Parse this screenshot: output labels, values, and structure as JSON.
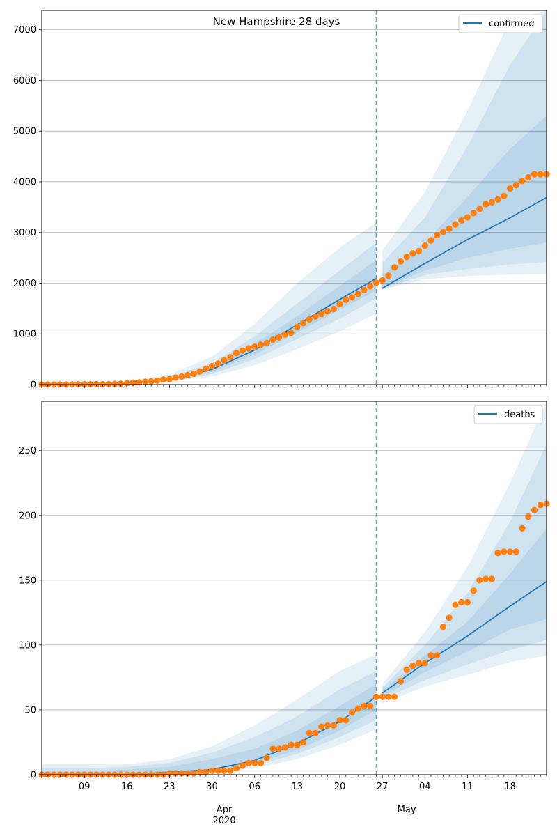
{
  "chart_data": [
    {
      "type": "line",
      "title": "New Hampshire 28 days",
      "xlabel": "",
      "ylabel": "",
      "ylim": [
        0,
        7380
      ],
      "yticks": [
        0,
        1000,
        2000,
        3000,
        4000,
        5000,
        6000,
        7000
      ],
      "grid": "horizontal",
      "legend_position": "top-right",
      "forecast_start": "2020-04-26",
      "series": [
        {
          "name": "confirmed",
          "kind": "forecast-median-line",
          "color": "#1f77b4",
          "x": [
            "2020-03-02",
            "2020-03-09",
            "2020-03-16",
            "2020-03-23",
            "2020-03-30",
            "2020-04-06",
            "2020-04-13",
            "2020-04-20",
            "2020-04-26",
            "2020-04-27",
            "2020-05-04",
            "2020-05-11",
            "2020-05-18",
            "2020-05-24"
          ],
          "y": [
            0,
            5,
            25,
            95,
            300,
            680,
            1180,
            1680,
            2090,
            1900,
            2390,
            2860,
            3290,
            3690
          ]
        },
        {
          "name": "uncertainty bands",
          "kind": "bands",
          "color": "#1f77b4",
          "x": [
            "2020-03-02",
            "2020-03-09",
            "2020-03-16",
            "2020-03-23",
            "2020-03-30",
            "2020-04-06",
            "2020-04-13",
            "2020-04-20",
            "2020-04-26",
            "2020-04-27",
            "2020-05-04",
            "2020-05-11",
            "2020-05-18",
            "2020-05-24"
          ],
          "outer_low": [
            0,
            0,
            10,
            50,
            160,
            380,
            700,
            1050,
            1400,
            1870,
            2080,
            2140,
            2170,
            2180
          ],
          "outer_high": [
            30,
            40,
            70,
            200,
            550,
            1200,
            2000,
            2700,
            3200,
            2650,
            3800,
            5400,
            7200,
            7380
          ],
          "mid_low": [
            0,
            0,
            15,
            65,
            210,
            500,
            900,
            1300,
            1700,
            1880,
            2160,
            2280,
            2370,
            2420
          ],
          "mid_high": [
            15,
            20,
            45,
            150,
            420,
            950,
            1600,
            2250,
            2800,
            2400,
            3300,
            4700,
            6300,
            7380
          ],
          "inner_low": [
            0,
            2,
            18,
            80,
            250,
            590,
            1030,
            1480,
            1850,
            1890,
            2250,
            2500,
            2680,
            2800
          ],
          "inner_high": [
            5,
            10,
            35,
            120,
            360,
            800,
            1350,
            1950,
            2450,
            2150,
            2800,
            3700,
            4650,
            5300
          ]
        },
        {
          "name": "observed",
          "kind": "scatter",
          "color": "#ff7f0e",
          "x": [
            "2020-03-02",
            "2020-03-03",
            "2020-03-04",
            "2020-03-05",
            "2020-03-06",
            "2020-03-07",
            "2020-03-08",
            "2020-03-09",
            "2020-03-10",
            "2020-03-11",
            "2020-03-12",
            "2020-03-13",
            "2020-03-14",
            "2020-03-15",
            "2020-03-16",
            "2020-03-17",
            "2020-03-18",
            "2020-03-19",
            "2020-03-20",
            "2020-03-21",
            "2020-03-22",
            "2020-03-23",
            "2020-03-24",
            "2020-03-25",
            "2020-03-26",
            "2020-03-27",
            "2020-03-28",
            "2020-03-29",
            "2020-03-30",
            "2020-03-31",
            "2020-04-01",
            "2020-04-02",
            "2020-04-03",
            "2020-04-04",
            "2020-04-05",
            "2020-04-06",
            "2020-04-07",
            "2020-04-08",
            "2020-04-09",
            "2020-04-10",
            "2020-04-11",
            "2020-04-12",
            "2020-04-13",
            "2020-04-14",
            "2020-04-15",
            "2020-04-16",
            "2020-04-17",
            "2020-04-18",
            "2020-04-19",
            "2020-04-20",
            "2020-04-21",
            "2020-04-22",
            "2020-04-23",
            "2020-04-24",
            "2020-04-25",
            "2020-04-26",
            "2020-04-27",
            "2020-04-28",
            "2020-04-29",
            "2020-04-30",
            "2020-05-01",
            "2020-05-02",
            "2020-05-03",
            "2020-05-04",
            "2020-05-05",
            "2020-05-06",
            "2020-05-07",
            "2020-05-08",
            "2020-05-09",
            "2020-05-10",
            "2020-05-11",
            "2020-05-12",
            "2020-05-13",
            "2020-05-14",
            "2020-05-15",
            "2020-05-16",
            "2020-05-17",
            "2020-05-18",
            "2020-05-19",
            "2020-05-20",
            "2020-05-21",
            "2020-05-22",
            "2020-05-23",
            "2020-05-24"
          ],
          "y": [
            2,
            2,
            2,
            2,
            2,
            4,
            6,
            6,
            5,
            7,
            7,
            7,
            13,
            17,
            26,
            39,
            44,
            55,
            65,
            78,
            101,
            108,
            137,
            158,
            187,
            214,
            258,
            314,
            367,
            415,
            479,
            540,
            621,
            669,
            715,
            747,
            788,
            819,
            885,
            929,
            985,
            1020,
            1139,
            1211,
            1287,
            1342,
            1392,
            1447,
            1491,
            1588,
            1670,
            1720,
            1787,
            1864,
            1938,
            2010,
            2054,
            2146,
            2310,
            2429,
            2518,
            2588,
            2636,
            2740,
            2843,
            2947,
            3011,
            3071,
            3160,
            3239,
            3299,
            3382,
            3463,
            3558,
            3595,
            3652,
            3721,
            3867,
            3935,
            4014,
            4089,
            4149,
            4149,
            4149
          ]
        }
      ]
    },
    {
      "type": "line",
      "title": "",
      "xlabel": "",
      "ylabel": "",
      "ylim": [
        0,
        288
      ],
      "yticks": [
        0,
        50,
        100,
        150,
        200,
        250
      ],
      "grid": "horizontal",
      "legend_position": "top-right",
      "forecast_start": "2020-04-26",
      "xtick_labels": [
        "09",
        "16",
        "23",
        "30",
        "06",
        "13",
        "20",
        "27",
        "04",
        "11",
        "18"
      ],
      "xtick_dates": [
        "2020-03-09",
        "2020-03-16",
        "2020-03-23",
        "2020-03-30",
        "2020-04-06",
        "2020-04-13",
        "2020-04-20",
        "2020-04-27",
        "2020-05-04",
        "2020-05-11",
        "2020-05-18"
      ],
      "month_labels": [
        {
          "label": "Apr\n2020",
          "date": "2020-04-01"
        },
        {
          "label": "May",
          "date": "2020-05-01"
        }
      ],
      "series": [
        {
          "name": "deaths",
          "kind": "forecast-median-line",
          "color": "#1f77b4",
          "x": [
            "2020-03-02",
            "2020-03-09",
            "2020-03-16",
            "2020-03-23",
            "2020-03-30",
            "2020-04-06",
            "2020-04-13",
            "2020-04-20",
            "2020-04-26",
            "2020-04-27",
            "2020-05-04",
            "2020-05-11",
            "2020-05-18",
            "2020-05-24"
          ],
          "y": [
            0,
            0,
            0,
            2,
            4,
            11,
            24,
            41,
            60,
            63,
            86,
            107,
            130,
            149
          ]
        },
        {
          "name": "uncertainty bands",
          "kind": "bands",
          "color": "#1f77b4",
          "x": [
            "2020-03-02",
            "2020-03-09",
            "2020-03-16",
            "2020-03-23",
            "2020-03-30",
            "2020-04-06",
            "2020-04-13",
            "2020-04-20",
            "2020-04-26",
            "2020-04-27",
            "2020-05-04",
            "2020-05-11",
            "2020-05-18",
            "2020-05-24"
          ],
          "outer_low": [
            0,
            0,
            0,
            0,
            1,
            5,
            12,
            23,
            35,
            55,
            68,
            77,
            87,
            92
          ],
          "outer_high": [
            8,
            8,
            8,
            12,
            22,
            38,
            58,
            80,
            93,
            70,
            110,
            160,
            225,
            288
          ],
          "mid_low": [
            0,
            0,
            0,
            1,
            2,
            7,
            16,
            29,
            42,
            58,
            73,
            85,
            96,
            104
          ],
          "mid_high": [
            5,
            5,
            6,
            9,
            17,
            29,
            45,
            66,
            80,
            67,
            100,
            140,
            195,
            255
          ],
          "inner_low": [
            0,
            0,
            0,
            1,
            3,
            9,
            19,
            34,
            50,
            60,
            79,
            95,
            112,
            120
          ],
          "inner_high": [
            3,
            3,
            4,
            6,
            12,
            20,
            34,
            53,
            70,
            65,
            92,
            118,
            155,
            190
          ]
        },
        {
          "name": "observed",
          "kind": "scatter",
          "color": "#ff7f0e",
          "x": [
            "2020-03-02",
            "2020-03-03",
            "2020-03-04",
            "2020-03-05",
            "2020-03-06",
            "2020-03-07",
            "2020-03-08",
            "2020-03-09",
            "2020-03-10",
            "2020-03-11",
            "2020-03-12",
            "2020-03-13",
            "2020-03-14",
            "2020-03-15",
            "2020-03-16",
            "2020-03-17",
            "2020-03-18",
            "2020-03-19",
            "2020-03-20",
            "2020-03-21",
            "2020-03-22",
            "2020-03-23",
            "2020-03-24",
            "2020-03-25",
            "2020-03-26",
            "2020-03-27",
            "2020-03-28",
            "2020-03-29",
            "2020-03-30",
            "2020-03-31",
            "2020-04-01",
            "2020-04-02",
            "2020-04-03",
            "2020-04-04",
            "2020-04-05",
            "2020-04-06",
            "2020-04-07",
            "2020-04-08",
            "2020-04-09",
            "2020-04-10",
            "2020-04-11",
            "2020-04-12",
            "2020-04-13",
            "2020-04-14",
            "2020-04-15",
            "2020-04-16",
            "2020-04-17",
            "2020-04-18",
            "2020-04-19",
            "2020-04-20",
            "2020-04-21",
            "2020-04-22",
            "2020-04-23",
            "2020-04-24",
            "2020-04-25",
            "2020-04-26",
            "2020-04-27",
            "2020-04-28",
            "2020-04-29",
            "2020-04-30",
            "2020-05-01",
            "2020-05-02",
            "2020-05-03",
            "2020-05-04",
            "2020-05-05",
            "2020-05-06",
            "2020-05-07",
            "2020-05-08",
            "2020-05-09",
            "2020-05-10",
            "2020-05-11",
            "2020-05-12",
            "2020-05-13",
            "2020-05-14",
            "2020-05-15",
            "2020-05-16",
            "2020-05-17",
            "2020-05-18",
            "2020-05-19",
            "2020-05-20",
            "2020-05-21",
            "2020-05-22",
            "2020-05-23",
            "2020-05-24"
          ],
          "y": [
            0,
            0,
            0,
            0,
            0,
            0,
            0,
            0,
            0,
            0,
            0,
            0,
            0,
            0,
            0,
            0,
            0,
            0,
            0,
            0,
            0,
            1,
            1,
            1,
            1,
            1,
            2,
            2,
            3,
            3,
            3,
            3,
            5,
            7,
            9,
            9,
            9,
            13,
            20,
            20,
            21,
            23,
            23,
            25,
            32,
            32,
            37,
            38,
            38,
            42,
            42,
            48,
            51,
            53,
            53,
            60,
            60,
            60,
            60,
            72,
            81,
            84,
            86,
            86,
            92,
            92,
            114,
            121,
            131,
            133,
            133,
            142,
            150,
            151,
            151,
            171,
            172,
            172,
            172,
            190,
            199,
            204,
            208,
            209
          ]
        }
      ]
    }
  ]
}
